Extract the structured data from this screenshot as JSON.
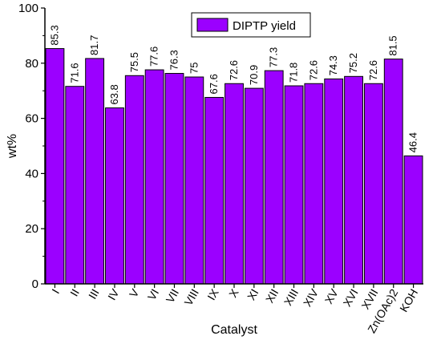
{
  "chart_data": {
    "type": "bar",
    "xlabel": "Catalyst",
    "ylabel": "wt%",
    "ylim": [
      0,
      100
    ],
    "yticks": [
      0,
      20,
      40,
      60,
      80,
      100
    ],
    "grid": false,
    "legend_position": "top-center",
    "bar_color": "#9B00FF",
    "bar_edge_color": "#000000",
    "categories": [
      "I",
      "II",
      "III",
      "IV",
      "V",
      "VI",
      "VII",
      "VIII",
      "IX",
      "X",
      "XI",
      "XII",
      "XIII",
      "XIV",
      "XV",
      "XVI",
      "XVII",
      "Zn(OAc)2",
      "KOH"
    ],
    "series": [
      {
        "name": "DIPTP yield",
        "values": [
          85.3,
          71.6,
          81.7,
          63.8,
          75.5,
          77.6,
          76.3,
          75,
          67.6,
          72.6,
          70.9,
          77.3,
          71.8,
          72.6,
          74.3,
          75.2,
          72.6,
          81.5,
          46.4
        ]
      }
    ]
  }
}
